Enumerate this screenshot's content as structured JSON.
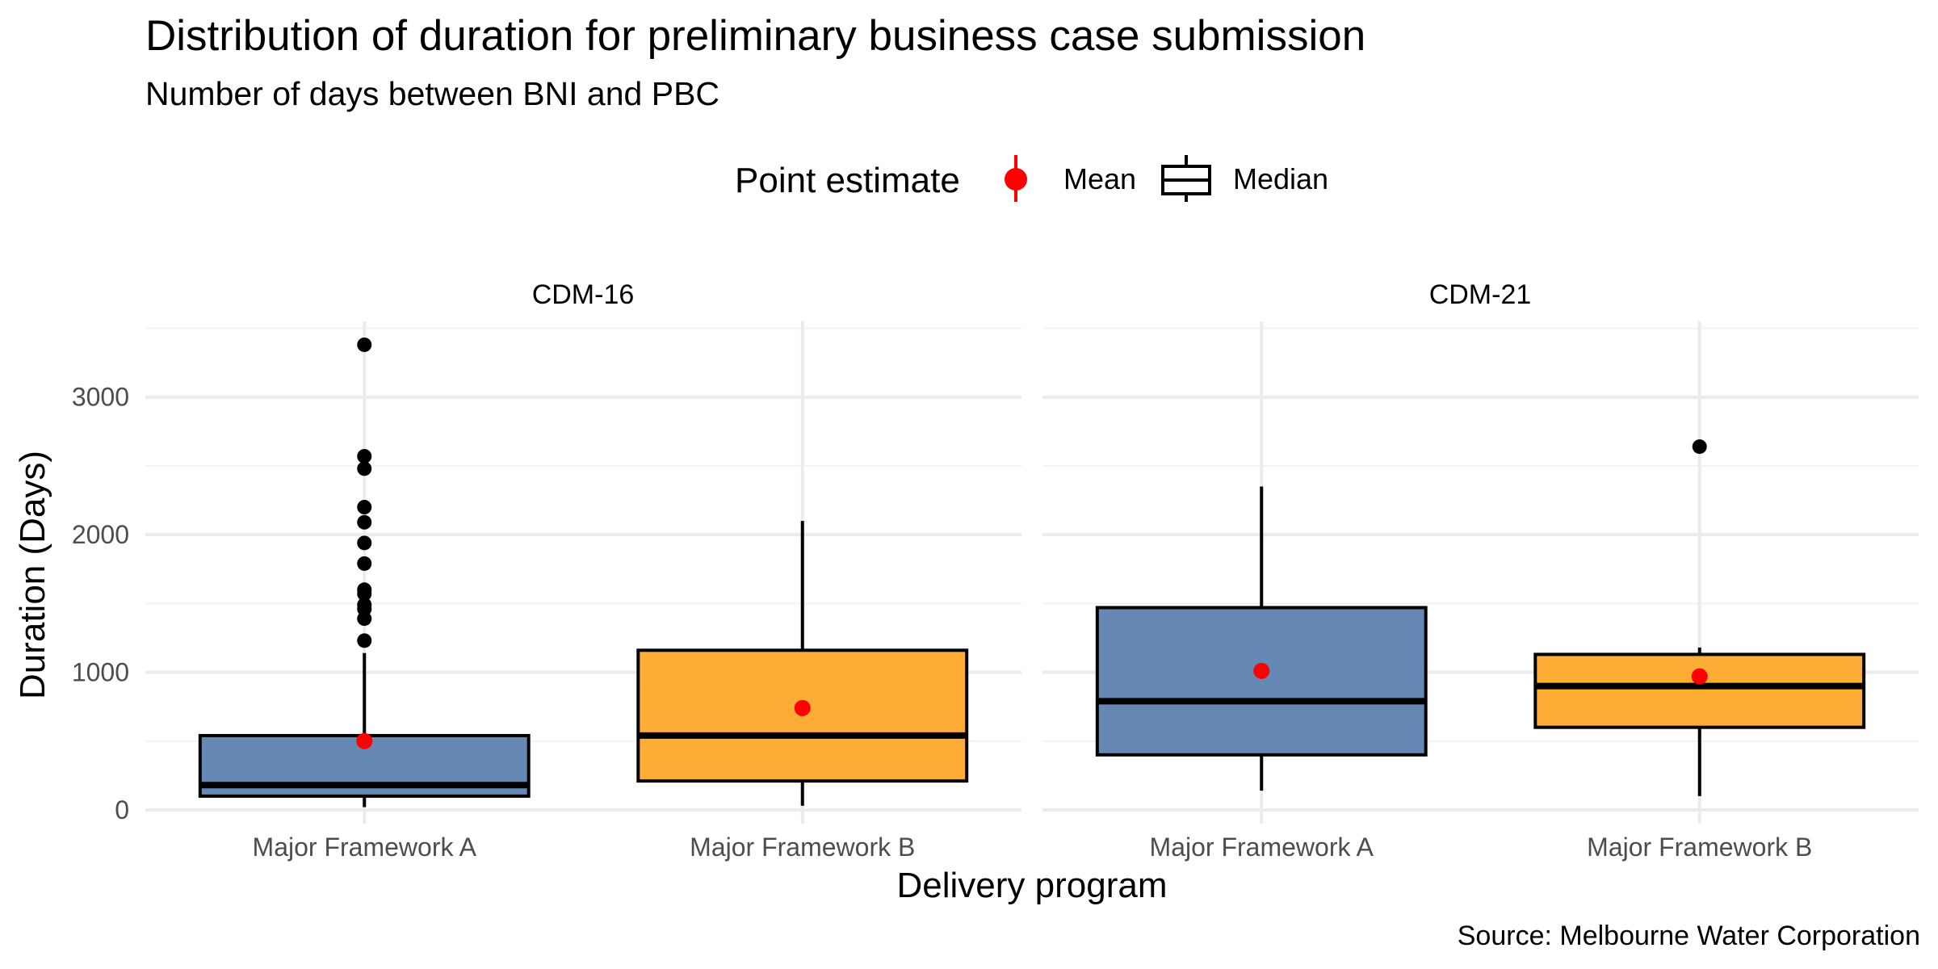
{
  "chart_data": {
    "type": "boxplot",
    "title": "Distribution of duration for preliminary business case submission",
    "subtitle": "Number of days between BNI and PBC",
    "xlabel": "Delivery program",
    "ylabel": "Duration (Days)",
    "caption": "Source: Melbourne Water Corporation",
    "ylim": [
      -100,
      3550
    ],
    "yticks": [
      0,
      1000,
      2000,
      3000
    ],
    "grid": true,
    "legend": {
      "position": "top",
      "title": "Point estimate",
      "items": [
        {
          "label": "Mean",
          "symbol": "point",
          "color": "#ff0000"
        },
        {
          "label": "Median",
          "symbol": "box",
          "color": "#000000"
        }
      ]
    },
    "categories": [
      "Major Framework A",
      "Major Framework B"
    ],
    "colors": {
      "Major Framework A": "#6688b5",
      "Major Framework B": "#fdac35"
    },
    "panels": [
      {
        "name": "CDM-16",
        "boxes": [
          {
            "category": "Major Framework A",
            "min": 20,
            "q1": 100,
            "median": 180,
            "q3": 540,
            "max": 1140,
            "mean": 500,
            "outliers": [
              1230,
              1390,
              1460,
              1490,
              1570,
              1600,
              1790,
              1940,
              2090,
              2200,
              2480,
              2570,
              3380
            ]
          },
          {
            "category": "Major Framework B",
            "min": 30,
            "q1": 210,
            "median": 540,
            "q3": 1160,
            "max": 2100,
            "mean": 740,
            "outliers": []
          }
        ]
      },
      {
        "name": "CDM-21",
        "boxes": [
          {
            "category": "Major Framework A",
            "min": 140,
            "q1": 400,
            "median": 790,
            "q3": 1470,
            "max": 2350,
            "mean": 1010,
            "outliers": []
          },
          {
            "category": "Major Framework B",
            "min": 100,
            "q1": 600,
            "median": 900,
            "q3": 1130,
            "max": 1180,
            "mean": 970,
            "outliers": [
              2640
            ]
          }
        ]
      }
    ]
  }
}
